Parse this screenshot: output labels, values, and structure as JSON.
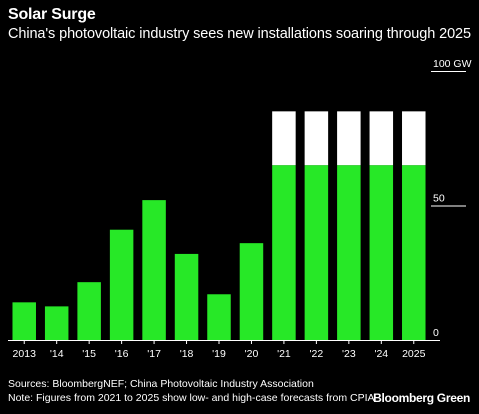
{
  "header": {
    "title": "Solar Surge",
    "subtitle": "China's photovoltaic industry sees new installations soaring through 2025"
  },
  "footer": {
    "sources": "Sources: BloombergNEF; China Photovoltaic Industry Association",
    "note": "Note: Figures from 2021 to 2025 show low- and high-case forecasts from CPIA",
    "brand": "Bloomberg Green"
  },
  "chart_data": {
    "type": "bar",
    "stacked": true,
    "categories": [
      "2013",
      "'14",
      "'15",
      "'16",
      "'17",
      "'18",
      "'19",
      "'20",
      "'21",
      "'22",
      "'23",
      "'24",
      "2025"
    ],
    "series": [
      {
        "name": "Low-case forecast",
        "color": "#27e827",
        "values": [
          14,
          12.5,
          21.5,
          41,
          52,
          32,
          17,
          36,
          65,
          65,
          65,
          65,
          65
        ]
      },
      {
        "name": "High-case forecast",
        "color": "#ffffff",
        "values": [
          0,
          0,
          0,
          0,
          0,
          0,
          0,
          0,
          20,
          20,
          20,
          20,
          20
        ]
      }
    ],
    "yticks": [
      {
        "value": 0,
        "label": "0"
      },
      {
        "value": 50,
        "label": "50"
      },
      {
        "value": 100,
        "label": "100 GW"
      }
    ],
    "ylim": [
      0,
      100
    ],
    "grid": false,
    "legend": "none",
    "axis_color": "#ffffff"
  }
}
